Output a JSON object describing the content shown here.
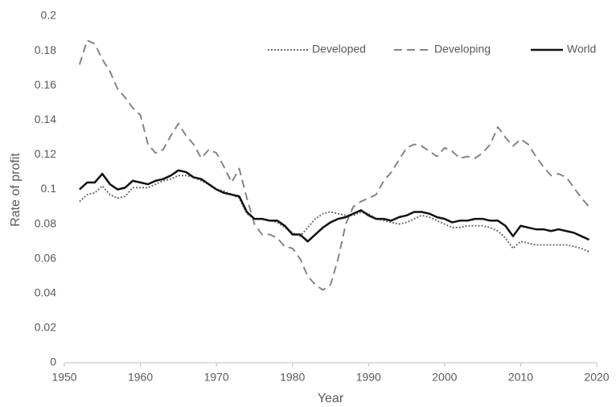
{
  "chart_data": {
    "type": "line",
    "xlabel": "Year",
    "ylabel": "Rate of profit",
    "x": [
      1952,
      1953,
      1954,
      1955,
      1956,
      1957,
      1958,
      1959,
      1960,
      1961,
      1962,
      1963,
      1964,
      1965,
      1966,
      1967,
      1968,
      1969,
      1970,
      1971,
      1972,
      1973,
      1974,
      1975,
      1976,
      1977,
      1978,
      1979,
      1980,
      1981,
      1982,
      1983,
      1984,
      1985,
      1986,
      1987,
      1988,
      1989,
      1990,
      1991,
      1992,
      1993,
      1994,
      1995,
      1996,
      1997,
      1998,
      1999,
      2000,
      2001,
      2002,
      2003,
      2004,
      2005,
      2006,
      2007,
      2008,
      2009,
      2010,
      2011,
      2012,
      2013,
      2014,
      2015,
      2016,
      2017,
      2018,
      2019
    ],
    "series": [
      {
        "name": "Developed",
        "color": "#6e6e6e",
        "dash": "dotted",
        "values": [
          0.093,
          0.097,
          0.098,
          0.102,
          0.097,
          0.095,
          0.096,
          0.101,
          0.101,
          0.101,
          0.103,
          0.105,
          0.106,
          0.108,
          0.108,
          0.107,
          0.105,
          0.103,
          0.1,
          0.099,
          0.097,
          0.095,
          0.086,
          0.083,
          0.083,
          0.082,
          0.081,
          0.078,
          0.075,
          0.073,
          0.078,
          0.083,
          0.086,
          0.087,
          0.086,
          0.085,
          0.085,
          0.087,
          0.086,
          0.083,
          0.082,
          0.081,
          0.08,
          0.081,
          0.083,
          0.085,
          0.084,
          0.082,
          0.08,
          0.078,
          0.078,
          0.079,
          0.079,
          0.079,
          0.078,
          0.076,
          0.072,
          0.066,
          0.07,
          0.069,
          0.068,
          0.068,
          0.068,
          0.068,
          0.068,
          0.067,
          0.066,
          0.064
        ]
      },
      {
        "name": "Developing",
        "color": "#858585",
        "dash": "dashed",
        "values": [
          0.172,
          0.186,
          0.184,
          0.175,
          0.168,
          0.158,
          0.153,
          0.147,
          0.143,
          0.126,
          0.121,
          0.123,
          0.131,
          0.138,
          0.131,
          0.126,
          0.118,
          0.123,
          0.121,
          0.113,
          0.104,
          0.112,
          0.095,
          0.08,
          0.074,
          0.074,
          0.072,
          0.067,
          0.066,
          0.06,
          0.05,
          0.045,
          0.042,
          0.045,
          0.06,
          0.08,
          0.09,
          0.093,
          0.095,
          0.097,
          0.105,
          0.11,
          0.117,
          0.124,
          0.126,
          0.125,
          0.122,
          0.119,
          0.124,
          0.122,
          0.118,
          0.119,
          0.118,
          0.121,
          0.126,
          0.136,
          0.13,
          0.125,
          0.129,
          0.126,
          0.119,
          0.113,
          0.108,
          0.109,
          0.107,
          0.101,
          0.095,
          0.09
        ]
      },
      {
        "name": "World",
        "color": "#111111",
        "dash": "solid",
        "values": [
          0.1,
          0.104,
          0.104,
          0.109,
          0.103,
          0.1,
          0.101,
          0.105,
          0.104,
          0.103,
          0.105,
          0.106,
          0.108,
          0.111,
          0.11,
          0.107,
          0.106,
          0.103,
          0.1,
          0.098,
          0.097,
          0.096,
          0.087,
          0.083,
          0.083,
          0.082,
          0.082,
          0.079,
          0.074,
          0.074,
          0.07,
          0.074,
          0.078,
          0.081,
          0.083,
          0.084,
          0.086,
          0.088,
          0.085,
          0.083,
          0.083,
          0.082,
          0.084,
          0.085,
          0.087,
          0.087,
          0.086,
          0.084,
          0.083,
          0.081,
          0.082,
          0.082,
          0.083,
          0.083,
          0.082,
          0.082,
          0.079,
          0.073,
          0.079,
          0.078,
          0.077,
          0.077,
          0.076,
          0.077,
          0.076,
          0.075,
          0.073,
          0.071
        ]
      }
    ],
    "xlim": [
      1950,
      2020
    ],
    "xticks": [
      1950,
      1960,
      1970,
      1980,
      1990,
      2000,
      2010,
      2020
    ],
    "ylim": [
      0,
      0.2
    ],
    "yticks": [
      0,
      0.02,
      0.04,
      0.06,
      0.08,
      0.1,
      0.12,
      0.14,
      0.16,
      0.18,
      0.2
    ],
    "grid": false,
    "legend": "top-right"
  }
}
